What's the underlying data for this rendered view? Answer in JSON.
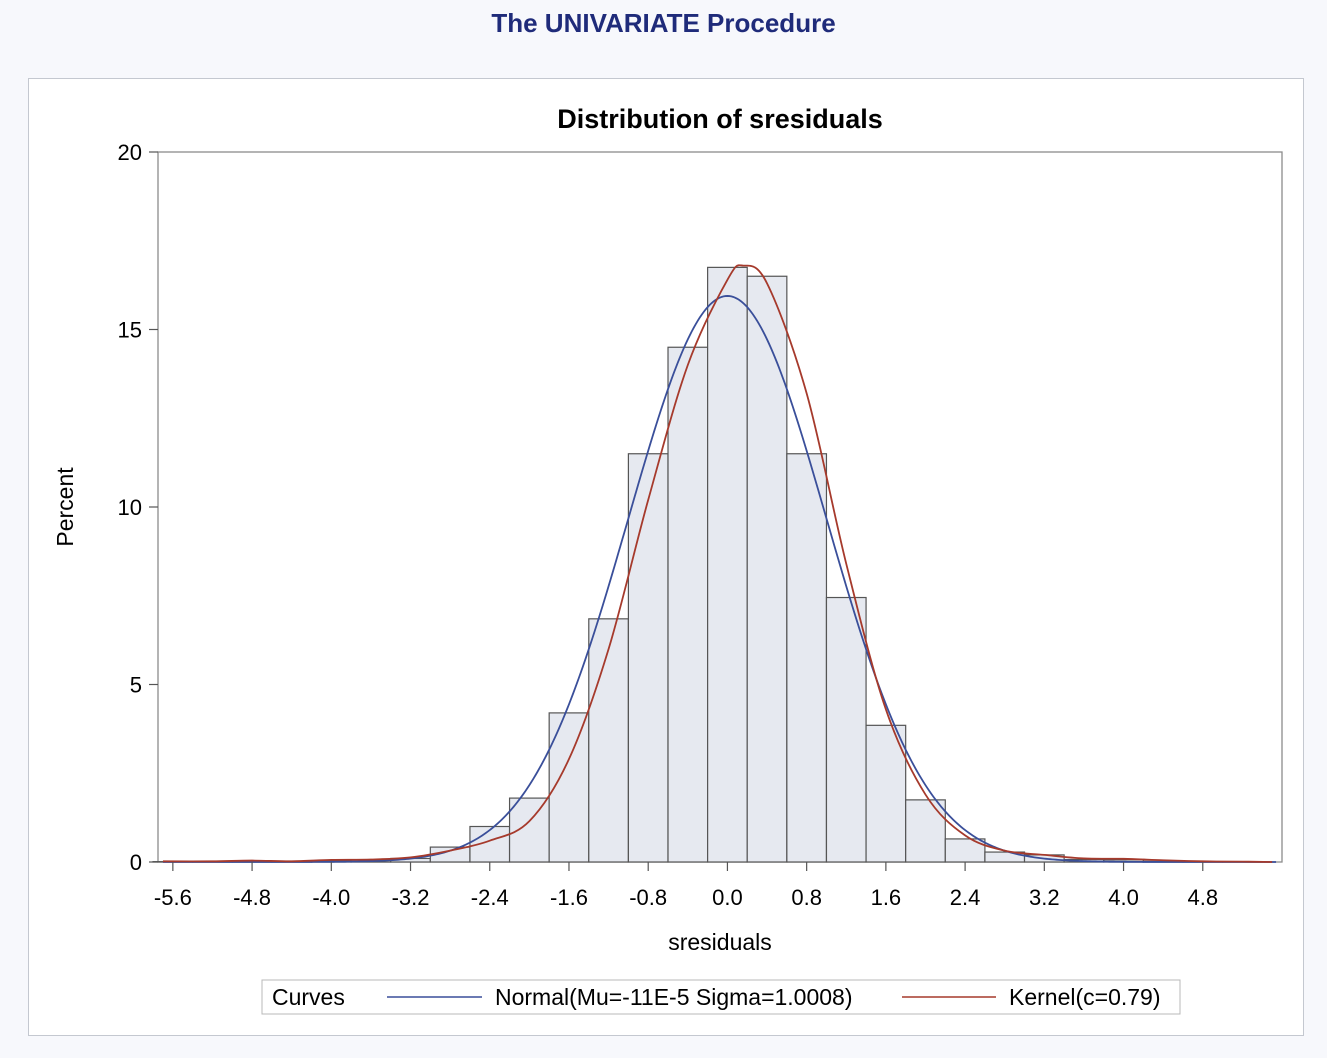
{
  "page_title": "The UNIVARIATE Procedure",
  "chart_data": {
    "type": "bar",
    "title": "Distribution of sresiduals",
    "xlabel": "sresiduals",
    "ylabel": "Percent",
    "xlim": [
      -5.75,
      5.6
    ],
    "ylim": [
      0,
      20
    ],
    "x_ticks": [
      "-5.6",
      "-4.8",
      "-4.0",
      "-3.2",
      "-2.4",
      "-1.6",
      "-0.8",
      "0.0",
      "0.8",
      "1.6",
      "2.4",
      "3.2",
      "4.0",
      "4.8"
    ],
    "x_tick_values": [
      -5.6,
      -4.8,
      -4.0,
      -3.2,
      -2.4,
      -1.6,
      -0.8,
      0.0,
      0.8,
      1.6,
      2.4,
      3.2,
      4.0,
      4.8
    ],
    "y_ticks": [
      "0",
      "5",
      "10",
      "15",
      "20"
    ],
    "y_tick_values": [
      0,
      5,
      10,
      15,
      20
    ],
    "bin_width": 0.4,
    "bin_midpoints": [
      -5.6,
      -5.2,
      -4.8,
      -4.4,
      -4.0,
      -3.6,
      -3.2,
      -2.8,
      -2.4,
      -2.0,
      -1.6,
      -1.2,
      -0.8,
      -0.4,
      0.0,
      0.4,
      0.8,
      1.2,
      1.6,
      2.0,
      2.4,
      2.8,
      3.2,
      3.6,
      4.0,
      4.4,
      4.8,
      5.2
    ],
    "values": [
      0.01,
      0.01,
      0.02,
      0.01,
      0.03,
      0.05,
      0.1,
      0.42,
      1.0,
      1.8,
      4.2,
      6.85,
      11.5,
      14.5,
      16.75,
      16.5,
      11.5,
      7.45,
      3.85,
      1.75,
      0.65,
      0.28,
      0.2,
      0.07,
      0.06,
      0.02,
      0.01,
      0.01
    ],
    "bar_fill": "#e6e9f0",
    "bar_stroke": "#555555",
    "curves": [
      {
        "name": "Normal(Mu=-11E-5 Sigma=1.0008)",
        "kind": "normal",
        "mu": -0.00011,
        "sigma": 1.0008,
        "color": "#3a4f9a"
      },
      {
        "name": "Kernel(c=0.79)",
        "kind": "kernel",
        "color": "#a63a2c",
        "points": [
          [
            -5.7,
            0.02
          ],
          [
            -5.2,
            0.02
          ],
          [
            -4.8,
            0.04
          ],
          [
            -4.4,
            0.02
          ],
          [
            -4.0,
            0.06
          ],
          [
            -3.6,
            0.07
          ],
          [
            -3.2,
            0.13
          ],
          [
            -2.8,
            0.32
          ],
          [
            -2.4,
            0.6
          ],
          [
            -2.0,
            1.15
          ],
          [
            -1.6,
            2.9
          ],
          [
            -1.2,
            6.0
          ],
          [
            -0.8,
            10.2
          ],
          [
            -0.4,
            14.0
          ],
          [
            0.0,
            16.4
          ],
          [
            0.16,
            16.8
          ],
          [
            0.4,
            16.3
          ],
          [
            0.8,
            13.2
          ],
          [
            1.2,
            8.4
          ],
          [
            1.6,
            4.3
          ],
          [
            2.0,
            1.9
          ],
          [
            2.4,
            0.75
          ],
          [
            2.8,
            0.32
          ],
          [
            3.2,
            0.2
          ],
          [
            3.6,
            0.1
          ],
          [
            4.0,
            0.09
          ],
          [
            4.4,
            0.05
          ],
          [
            4.8,
            0.02
          ],
          [
            5.2,
            0.01
          ],
          [
            5.5,
            0.0
          ]
        ]
      }
    ],
    "legend": {
      "title": "Curves",
      "position": "bottom"
    }
  }
}
